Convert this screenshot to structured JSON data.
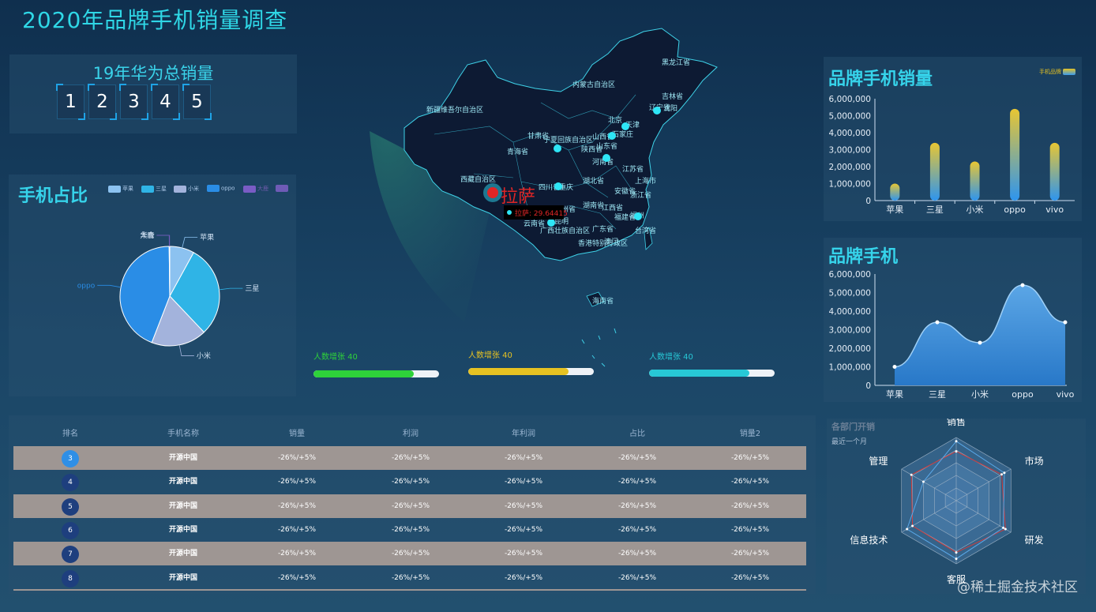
{
  "title": "2020年品牌手机销量调查",
  "counter": {
    "title": "19年华为总销量",
    "digits": [
      "1",
      "2",
      "3",
      "4",
      "5"
    ]
  },
  "pie": {
    "title": "手机占比",
    "legend": [
      "苹果",
      "三星",
      "小米",
      "oppo",
      "大鹿",
      "华合"
    ],
    "slices": [
      {
        "name": "苹果",
        "value": 8,
        "color": "#8cc2f0"
      },
      {
        "name": "三星",
        "value": 30,
        "color": "#2fb4e6"
      },
      {
        "name": "小米",
        "value": 18,
        "color": "#a3b3dc"
      },
      {
        "name": "oppo",
        "value": 44,
        "color": "#2a8de6"
      },
      {
        "name": "大鹿",
        "value": 0.1,
        "color": "#7a5cc4"
      },
      {
        "name": "华合",
        "value": 0.1,
        "color": "#6f5bb6"
      }
    ]
  },
  "map": {
    "selected_label": "拉萨",
    "tooltip": "拉萨: 29.64415",
    "labels": [
      "黑龙江省",
      "内蒙古自治区",
      "吉林省",
      "辽宁省",
      "沈阳",
      "新疆维吾尔自治区",
      "北京",
      "天津",
      "石家庄",
      "山西省",
      "甘肃省",
      "宁夏回族自治区",
      "山东省",
      "青海省",
      "陕西省",
      "河南省",
      "江苏省",
      "西藏自治区",
      "四川省",
      "湖北省",
      "重庆",
      "安徽省",
      "上海市",
      "浙江省",
      "湖南省",
      "江西省",
      "福建省",
      "福州",
      "贵州省",
      "云南省",
      "昆明",
      "广西壮族自治区",
      "广东省",
      "台湾省",
      "香港特别行政区",
      "澳门",
      "海南省"
    ]
  },
  "progress": [
    {
      "label": "人数增张 40",
      "value": 0.8,
      "color": "#2ed23a",
      "label_color": "#2ed23a"
    },
    {
      "label": "人数增张 40",
      "value": 0.8,
      "color": "#e6c222",
      "label_color": "#e6c222"
    },
    {
      "label": "人数增张 40",
      "value": 0.8,
      "color": "#27c8d6",
      "label_color": "#27c8d6"
    }
  ],
  "brand_sales": {
    "title": "品牌手机销量",
    "legend": "手机品牌"
  },
  "brand_phone": {
    "title": "品牌手机"
  },
  "radar": {
    "title": "各部门开销",
    "subtitle": "最近一个月",
    "indicators": [
      "销售",
      "市场",
      "研发",
      "客服",
      "信息技术",
      "管理"
    ],
    "series": [
      {
        "name": "预算",
        "values": [
          0.78,
          0.83,
          0.9,
          0.82,
          0.8,
          0.82
        ],
        "color": "#d23b3b"
      },
      {
        "name": "实际",
        "values": [
          0.94,
          0.88,
          0.86,
          0.92,
          0.9,
          0.6
        ],
        "color": "#5aa8e8"
      }
    ]
  },
  "table": {
    "headers": [
      "排名",
      "手机名称",
      "销量",
      "利润",
      "年利润",
      "占比",
      "销量2"
    ],
    "rows": [
      {
        "rank": "3",
        "name": "开源中国",
        "cells": [
          "-26%/+5%",
          "-26%/+5%",
          "-26%/+5%",
          "-26%/+5%",
          "-26%/+5%"
        ],
        "rank_color": "#2f8fe6"
      },
      {
        "rank": "4",
        "name": "开源中国",
        "cells": [
          "-26%/+5%",
          "-26%/+5%",
          "-26%/+5%",
          "-26%/+5%",
          "-26%/+5%"
        ],
        "rank_color": "#1e3f7e"
      },
      {
        "rank": "5",
        "name": "开源中国",
        "cells": [
          "-26%/+5%",
          "-26%/+5%",
          "-26%/+5%",
          "-26%/+5%",
          "-26%/+5%"
        ],
        "rank_color": "#1e3f7e"
      },
      {
        "rank": "6",
        "name": "开源中国",
        "cells": [
          "-26%/+5%",
          "-26%/+5%",
          "-26%/+5%",
          "-26%/+5%",
          "-26%/+5%"
        ],
        "rank_color": "#1e3f7e"
      },
      {
        "rank": "7",
        "name": "开源中国",
        "cells": [
          "-26%/+5%",
          "-26%/+5%",
          "-26%/+5%",
          "-26%/+5%",
          "-26%/+5%"
        ],
        "rank_color": "#1e3f7e"
      },
      {
        "rank": "8",
        "name": "开源中国",
        "cells": [
          "-26%/+5%",
          "-26%/+5%",
          "-26%/+5%",
          "-26%/+5%",
          "-26%/+5%"
        ],
        "rank_color": "#1e3f7e"
      }
    ]
  },
  "watermark": "@稀土掘金技术社区",
  "chart_data": [
    {
      "type": "bar",
      "title": "品牌手机销量",
      "categories": [
        "苹果",
        "三星",
        "小米",
        "oppo",
        "vivo"
      ],
      "series": [
        {
          "name": "手机品牌",
          "values": [
            1000000,
            3400000,
            2300000,
            5400000,
            3400000
          ]
        }
      ],
      "ylim": [
        0,
        6000000
      ],
      "yticks": [
        "0",
        "1,000,000",
        "2,000,000",
        "3,000,000",
        "4,000,000",
        "5,000,000",
        "6,000,000"
      ],
      "grid": false,
      "legend": "top-right"
    },
    {
      "type": "area",
      "title": "品牌手机",
      "categories": [
        "苹果",
        "三星",
        "小米",
        "oppo",
        "vivo"
      ],
      "series": [
        {
          "values": [
            1000000,
            3400000,
            2300000,
            5400000,
            3400000
          ]
        }
      ],
      "ylim": [
        0,
        6000000
      ],
      "yticks": [
        "0",
        "1,000,000",
        "2,000,000",
        "3,000,000",
        "4,000,000",
        "5,000,000",
        "6,000,000"
      ],
      "grid": false
    },
    {
      "type": "pie",
      "title": "手机占比",
      "categories": [
        "苹果",
        "三星",
        "小米",
        "oppo",
        "大鹿",
        "华合"
      ],
      "values": [
        8,
        30,
        18,
        44,
        0.1,
        0.1
      ],
      "legend": "top"
    }
  ]
}
